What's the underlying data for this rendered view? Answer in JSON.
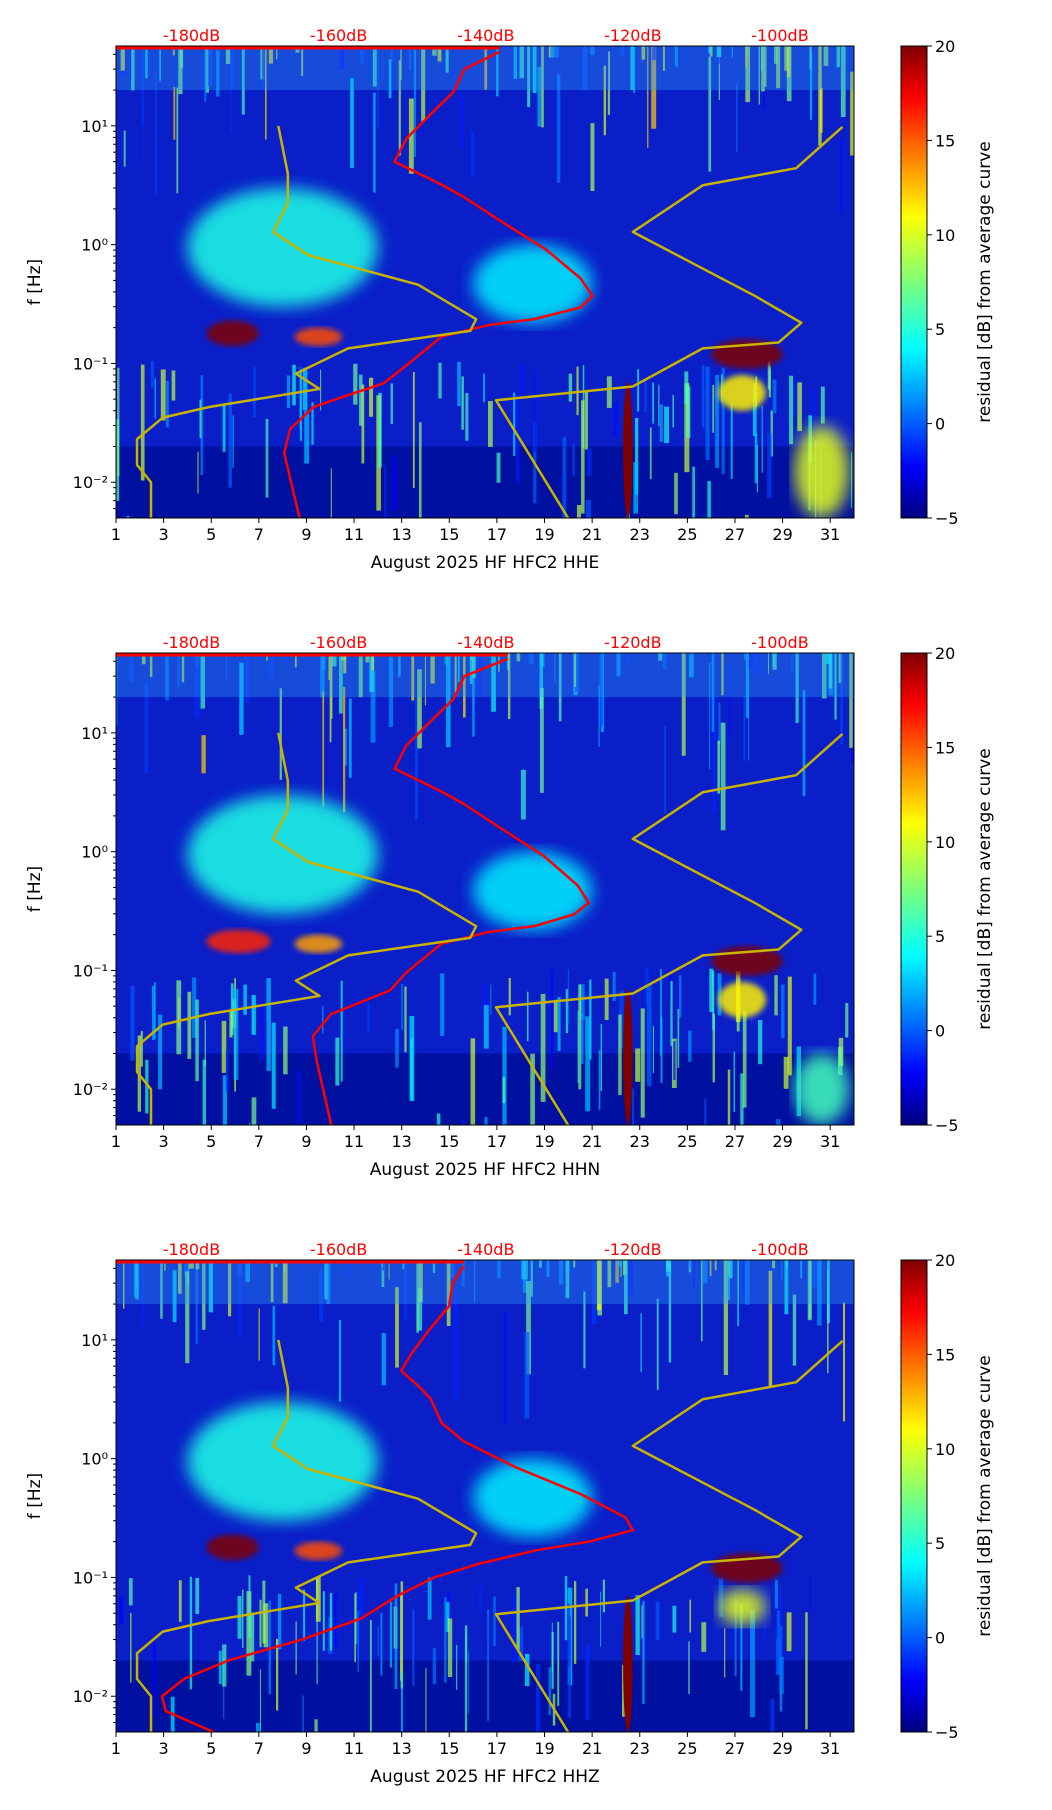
{
  "chart_data": [
    {
      "type": "heatmap",
      "xlabel": "August 2025 HF HFC2  HHE",
      "ylabel": "f [Hz]",
      "colorbar_label": "residual [dB] from average curve",
      "xlim": [
        1,
        32
      ],
      "ylim": [
        0.005,
        47
      ],
      "yscale": "log",
      "clim": [
        -5,
        20
      ],
      "x_ticks": [
        "1",
        "3",
        "5",
        "7",
        "9",
        "11",
        "13",
        "15",
        "17",
        "19",
        "21",
        "23",
        "25",
        "27",
        "29",
        "31"
      ],
      "y_ticks": [
        {
          "value": 0.01,
          "label": "10⁻²"
        },
        {
          "value": 0.1,
          "label": "10⁻¹"
        },
        {
          "value": 1,
          "label": "10⁰"
        },
        {
          "value": 10,
          "label": "10¹"
        }
      ],
      "colorbar_ticks": [
        "-5",
        "0",
        "5",
        "10",
        "15",
        "20"
      ],
      "top_axis_ticks": [
        {
          "value": -180,
          "label": "-180dB"
        },
        {
          "value": -160,
          "label": "-160dB"
        },
        {
          "value": -140,
          "label": "-140dB"
        },
        {
          "value": -120,
          "label": "-120dB"
        },
        {
          "value": -100,
          "label": "-100dB"
        }
      ],
      "features": [
        {
          "days": [
            4,
            12
          ],
          "f": [
            0.3,
            3
          ],
          "residual": 5
        },
        {
          "days": [
            16,
            21
          ],
          "f": [
            0.22,
            1
          ],
          "residual": 4
        },
        {
          "days": [
            4.8,
            7
          ],
          "f": [
            0.14,
            0.23
          ],
          "residual": 20
        },
        {
          "days": [
            8.5,
            10.5
          ],
          "f": [
            0.14,
            0.2
          ],
          "residual": 15
        },
        {
          "days": [
            26,
            29
          ],
          "f": [
            0.09,
            0.16
          ],
          "residual": 20
        },
        {
          "days": [
            26.3,
            28.3
          ],
          "f": [
            0.04,
            0.08
          ],
          "residual": 11
        },
        {
          "days": [
            29.5,
            31.8
          ],
          "f": [
            0.005,
            0.03
          ],
          "residual": 10
        },
        {
          "days": [
            22.3,
            22.7
          ],
          "f": [
            0.005,
            0.07
          ],
          "residual": 20
        }
      ],
      "series": [
        {
          "name": "average PSD",
          "color": "#ff0000",
          "db": [
            -165.3,
            -167.4,
            -166.6,
            -163.4,
            -158.7,
            -153.9,
            -150.8,
            -146,
            -139.7,
            -133.4,
            -127.1,
            -125.5,
            -127.1,
            -131.8,
            -138.1,
            -142.9,
            -146,
            -149.2,
            -152.4,
            -150.8,
            -147.6,
            -144.4,
            -142.9,
            -138.1,
            -190
          ],
          "f": [
            0.005,
            0.0176,
            0.028,
            0.043,
            0.054,
            0.068,
            0.096,
            0.168,
            0.21,
            0.236,
            0.296,
            0.37,
            0.52,
            0.91,
            1.6,
            2.5,
            3.2,
            4.0,
            5.0,
            7.8,
            12.3,
            19.2,
            30,
            42,
            47
          ]
        },
        {
          "name": "NLNM",
          "color": "#c8b400",
          "db": [
            -168.2,
            -166.9,
            -166.9,
            -168.9,
            -164.2,
            -149.2,
            -141.3,
            -142.1,
            -158.7,
            -165.8,
            -162.6,
            -177.6,
            -183.9,
            -187.4,
            -187.4,
            -185.5,
            -185.5
          ],
          "f": [
            10,
            3.96,
            2.25,
            1.28,
            0.82,
            0.46,
            0.236,
            0.188,
            0.134,
            0.082,
            0.061,
            0.043,
            0.035,
            0.023,
            0.014,
            0.01,
            0.005
          ]
        },
        {
          "name": "NHNM",
          "color": "#c8b400",
          "db": [
            -91.5,
            -97.8,
            -110.5,
            -120,
            -103.4,
            -97.1,
            -100.2,
            -110.5,
            -120,
            -138.6,
            -128.8
          ],
          "f": [
            9.8,
            4.4,
            3.16,
            1.28,
            0.37,
            0.22,
            0.15,
            0.134,
            0.064,
            0.049,
            0.005
          ]
        }
      ]
    },
    {
      "type": "heatmap",
      "xlabel": "August 2025 HF HFC2  HHN",
      "ylabel": "f [Hz]",
      "colorbar_label": "residual [dB] from average curve",
      "xlim": [
        1,
        32
      ],
      "ylim": [
        0.005,
        47
      ],
      "yscale": "log",
      "clim": [
        -5,
        20
      ],
      "x_ticks": [
        "1",
        "3",
        "5",
        "7",
        "9",
        "11",
        "13",
        "15",
        "17",
        "19",
        "21",
        "23",
        "25",
        "27",
        "29",
        "31"
      ],
      "y_ticks": [
        {
          "value": 0.01,
          "label": "10⁻²"
        },
        {
          "value": 0.1,
          "label": "10⁻¹"
        },
        {
          "value": 1,
          "label": "10⁰"
        },
        {
          "value": 10,
          "label": "10¹"
        }
      ],
      "colorbar_ticks": [
        "-5",
        "0",
        "5",
        "10",
        "15",
        "20"
      ],
      "top_axis_ticks": [
        {
          "value": -180,
          "label": "-180dB"
        },
        {
          "value": -160,
          "label": "-160dB"
        },
        {
          "value": -140,
          "label": "-140dB"
        },
        {
          "value": -120,
          "label": "-120dB"
        },
        {
          "value": -100,
          "label": "-100dB"
        }
      ],
      "features": [
        {
          "days": [
            4,
            12
          ],
          "f": [
            0.3,
            3
          ],
          "residual": 5
        },
        {
          "days": [
            16,
            21
          ],
          "f": [
            0.22,
            1
          ],
          "residual": 4
        },
        {
          "days": [
            4.8,
            7.5
          ],
          "f": [
            0.14,
            0.22
          ],
          "residual": 16
        },
        {
          "days": [
            8.5,
            10.5
          ],
          "f": [
            0.14,
            0.2
          ],
          "residual": 13
        },
        {
          "days": [
            26,
            29
          ],
          "f": [
            0.09,
            0.16
          ],
          "residual": 20
        },
        {
          "days": [
            26.3,
            28.3
          ],
          "f": [
            0.04,
            0.08
          ],
          "residual": 11
        },
        {
          "days": [
            29.5,
            31.8
          ],
          "f": [
            0.005,
            0.02
          ],
          "residual": 6
        },
        {
          "days": [
            22.3,
            22.7
          ],
          "f": [
            0.005,
            0.07
          ],
          "residual": 20
        }
      ],
      "series": [
        {
          "name": "average PSD",
          "color": "#ff0000",
          "db": [
            -161,
            -163,
            -163.5,
            -161,
            -157,
            -153,
            -150.8,
            -146,
            -139.7,
            -133.4,
            -128,
            -126,
            -127.5,
            -132,
            -138.1,
            -142.9,
            -146,
            -149.2,
            -152.4,
            -150.8,
            -147.6,
            -144.4,
            -142.9,
            -137,
            -190
          ],
          "f": [
            0.005,
            0.0176,
            0.028,
            0.043,
            0.054,
            0.068,
            0.096,
            0.168,
            0.21,
            0.236,
            0.296,
            0.37,
            0.52,
            0.91,
            1.6,
            2.5,
            3.2,
            4.0,
            5.0,
            7.8,
            12.3,
            19.2,
            30,
            42,
            47
          ]
        },
        {
          "name": "NLNM",
          "color": "#c8b400",
          "db": [
            -168.2,
            -166.9,
            -166.9,
            -168.9,
            -164.2,
            -149.2,
            -141.3,
            -142.1,
            -158.7,
            -165.8,
            -162.6,
            -177.6,
            -183.9,
            -187.4,
            -187.4,
            -185.5,
            -185.5
          ],
          "f": [
            10,
            3.96,
            2.25,
            1.28,
            0.82,
            0.46,
            0.236,
            0.188,
            0.134,
            0.082,
            0.061,
            0.043,
            0.035,
            0.023,
            0.014,
            0.01,
            0.005
          ]
        },
        {
          "name": "NHNM",
          "color": "#c8b400",
          "db": [
            -91.5,
            -97.8,
            -110.5,
            -120,
            -103.4,
            -97.1,
            -100.2,
            -110.5,
            -120,
            -138.6,
            -128.8
          ],
          "f": [
            9.8,
            4.4,
            3.16,
            1.28,
            0.37,
            0.22,
            0.15,
            0.134,
            0.064,
            0.049,
            0.005
          ]
        }
      ]
    },
    {
      "type": "heatmap",
      "xlabel": "August 2025 HF HFC2  HHZ",
      "ylabel": "f [Hz]",
      "colorbar_label": "residual [dB] from average curve",
      "xlim": [
        1,
        32
      ],
      "ylim": [
        0.005,
        47
      ],
      "yscale": "log",
      "clim": [
        -5,
        20
      ],
      "x_ticks": [
        "1",
        "3",
        "5",
        "7",
        "9",
        "11",
        "13",
        "15",
        "17",
        "19",
        "21",
        "23",
        "25",
        "27",
        "29",
        "31"
      ],
      "y_ticks": [
        {
          "value": 0.01,
          "label": "10⁻²"
        },
        {
          "value": 0.1,
          "label": "10⁻¹"
        },
        {
          "value": 1,
          "label": "10⁰"
        },
        {
          "value": 10,
          "label": "10¹"
        }
      ],
      "colorbar_ticks": [
        "-5",
        "0",
        "5",
        "10",
        "15",
        "20"
      ],
      "top_axis_ticks": [
        {
          "value": -180,
          "label": "-180dB"
        },
        {
          "value": -160,
          "label": "-160dB"
        },
        {
          "value": -140,
          "label": "-140dB"
        },
        {
          "value": -120,
          "label": "-120dB"
        },
        {
          "value": -100,
          "label": "-100dB"
        }
      ],
      "features": [
        {
          "days": [
            4,
            12
          ],
          "f": [
            0.3,
            3
          ],
          "residual": 5
        },
        {
          "days": [
            16,
            21
          ],
          "f": [
            0.22,
            1
          ],
          "residual": 4
        },
        {
          "days": [
            4.8,
            7
          ],
          "f": [
            0.14,
            0.23
          ],
          "residual": 20
        },
        {
          "days": [
            8.5,
            10.5
          ],
          "f": [
            0.14,
            0.2
          ],
          "residual": 15
        },
        {
          "days": [
            26,
            29
          ],
          "f": [
            0.09,
            0.16
          ],
          "residual": 20
        },
        {
          "days": [
            26.3,
            28.3
          ],
          "f": [
            0.04,
            0.08
          ],
          "residual": 10
        },
        {
          "days": [
            22.3,
            22.7
          ],
          "f": [
            0.005,
            0.07
          ],
          "residual": 20
        }
      ],
      "series": [
        {
          "name": "average PSD",
          "color": "#ff0000",
          "db": [
            -177,
            -183.5,
            -184,
            -181,
            -175,
            -165,
            -157,
            -152,
            -147,
            -141,
            -133,
            -126,
            -120,
            -121,
            -127,
            -136,
            -143,
            -146,
            -147.5,
            -149,
            -151.5,
            -150,
            -147.6,
            -145,
            -144.5,
            -143,
            -190
          ],
          "f": [
            0.005,
            0.0075,
            0.01,
            0.014,
            0.02,
            0.03,
            0.045,
            0.07,
            0.1,
            0.13,
            0.17,
            0.2,
            0.25,
            0.32,
            0.5,
            0.85,
            1.4,
            2.0,
            3.2,
            4.0,
            5.5,
            7.8,
            12.3,
            19.2,
            30,
            42,
            47
          ]
        },
        {
          "name": "NLNM",
          "color": "#c8b400",
          "db": [
            -168.2,
            -166.9,
            -166.9,
            -168.9,
            -164.2,
            -149.2,
            -141.3,
            -142.1,
            -158.7,
            -165.8,
            -162.6,
            -177.6,
            -183.9,
            -187.4,
            -187.4,
            -185.5,
            -185.5
          ],
          "f": [
            10,
            3.96,
            2.25,
            1.28,
            0.82,
            0.46,
            0.236,
            0.188,
            0.134,
            0.082,
            0.061,
            0.043,
            0.035,
            0.023,
            0.014,
            0.01,
            0.005
          ]
        },
        {
          "name": "NHNM",
          "color": "#c8b400",
          "db": [
            -91.5,
            -97.8,
            -110.5,
            -120,
            -103.4,
            -97.1,
            -100.2,
            -110.5,
            -120,
            -138.6,
            -128.8
          ],
          "f": [
            9.8,
            4.4,
            3.16,
            1.28,
            0.37,
            0.22,
            0.15,
            0.134,
            0.064,
            0.049,
            0.005
          ]
        }
      ]
    }
  ]
}
